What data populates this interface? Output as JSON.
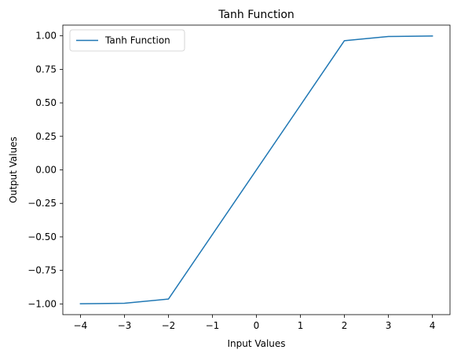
{
  "chart_data": {
    "type": "line",
    "title": "Tanh Function",
    "xlabel": "Input Values",
    "ylabel": "Output Values",
    "xlim": [
      -4.4,
      4.4
    ],
    "ylim": [
      -1.08,
      1.08
    ],
    "xticks": [
      -4,
      -3,
      -2,
      -1,
      0,
      1,
      2,
      3,
      4
    ],
    "xtick_labels": [
      "−4",
      "−3",
      "−2",
      "−1",
      "0",
      "1",
      "2",
      "3",
      "4"
    ],
    "yticks": [
      -1.0,
      -0.75,
      -0.5,
      -0.25,
      0.0,
      0.25,
      0.5,
      0.75,
      1.0
    ],
    "ytick_labels": [
      "−1.00",
      "−0.75",
      "−0.50",
      "−0.25",
      "0.00",
      "0.25",
      "0.50",
      "0.75",
      "1.00"
    ],
    "grid": false,
    "legend_position": "top-left",
    "series": [
      {
        "name": "Tanh Function",
        "color": "#1f77b4",
        "x": [
          -4,
          -3,
          -2,
          2,
          3,
          4
        ],
        "y": [
          -0.999,
          -0.995,
          -0.964,
          0.964,
          0.995,
          0.999
        ]
      }
    ]
  }
}
